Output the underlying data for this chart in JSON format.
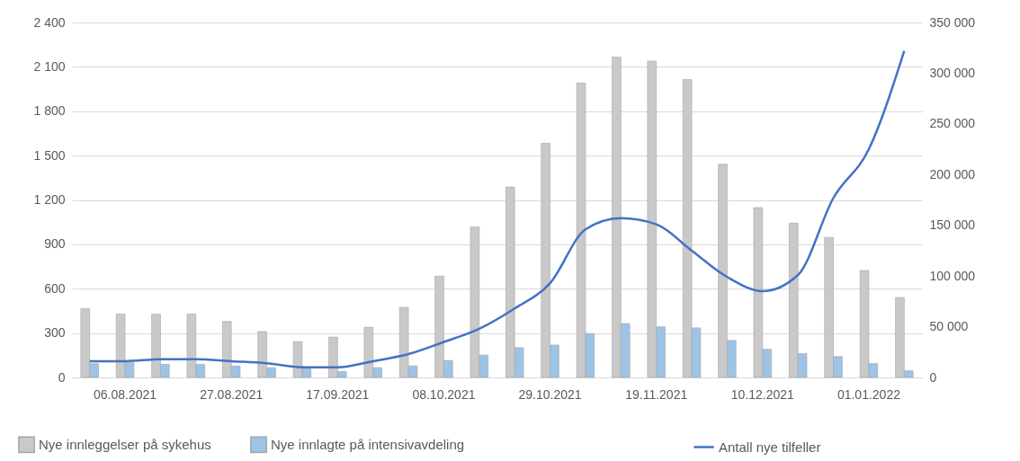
{
  "chart_data": {
    "type": "bar",
    "categories": [
      null,
      "06.08.2021",
      null,
      null,
      "27.08.2021",
      null,
      null,
      "17.09.2021",
      null,
      null,
      "08.10.2021",
      null,
      null,
      "29.10.2021",
      null,
      null,
      "19.11.2021",
      null,
      null,
      "10.12.2021",
      null,
      null,
      "01.01.2022",
      null
    ],
    "series": [
      {
        "name": "Nye innleggelser på sykehus",
        "color": "#c9c9c9",
        "values": [
          465,
          428,
          428,
          428,
          379,
          310,
          242,
          273,
          339,
          474,
          685,
          1017,
          1288,
          1583,
          1991,
          2166,
          2139,
          2014,
          1442,
          1148,
          1043,
          947,
          723,
          540
        ]
      },
      {
        "name": "Nye innlagte på intensivavdeling",
        "color": "#9dc3e6",
        "values": [
          93,
          100,
          89,
          89,
          78,
          66,
          60,
          40,
          66,
          78,
          115,
          151,
          201,
          219,
          297,
          364,
          342,
          335,
          250,
          190,
          161,
          141,
          94,
          45
        ]
      },
      {
        "name": "Antall nye tilfeller",
        "type": "line",
        "axis": "y2",
        "color": "#4472c4",
        "values": [
          16000,
          16000,
          18000,
          18000,
          16000,
          14000,
          10000,
          10000,
          16000,
          23000,
          35000,
          48000,
          68000,
          93000,
          146000,
          157000,
          151000,
          125000,
          99000,
          85000,
          101000,
          177000,
          225000,
          322000
        ]
      }
    ],
    "ylim": [
      0,
      2400
    ],
    "yticks": [
      0,
      300,
      600,
      900,
      {
        "value": 1200,
        "label": "1 200"
      },
      {
        "value": 1500,
        "label": "1 500"
      },
      {
        "value": 1800,
        "label": "1 800"
      },
      {
        "value": 2100,
        "label": "2 100"
      },
      {
        "value": 2400,
        "label": "2 400"
      }
    ],
    "y2lim": [
      0,
      350000
    ],
    "y2ticks": [
      0,
      {
        "value": 50000,
        "label": "50 000"
      },
      {
        "value": 100000,
        "label": "100 000"
      },
      {
        "value": 150000,
        "label": "150 000"
      },
      {
        "value": 200000,
        "label": "200 000"
      },
      {
        "value": 250000,
        "label": "250 000"
      },
      {
        "value": 300000,
        "label": "300 000"
      },
      {
        "value": 350000,
        "label": "350 000"
      }
    ],
    "grid": "y",
    "legend": "bottom"
  }
}
